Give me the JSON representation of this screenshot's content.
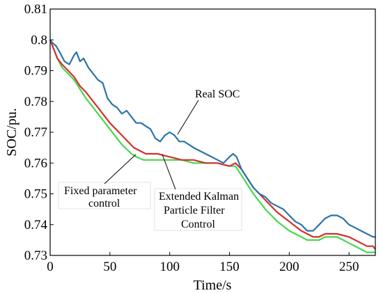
{
  "chart_data": {
    "type": "line",
    "title": "",
    "xlabel": "Time/s",
    "ylabel": "SOC/pu.",
    "xlim": [
      0,
      272
    ],
    "ylim": [
      0.73,
      0.81
    ],
    "xticks": [
      0,
      50,
      100,
      150,
      200,
      250
    ],
    "yticks": [
      0.73,
      0.74,
      0.75,
      0.76,
      0.77,
      0.78,
      0.79,
      0.8,
      0.81
    ],
    "grid": false,
    "legend": "none",
    "series": [
      {
        "label": "Real SOC",
        "color": "#2b73a8",
        "x": [
          0,
          2,
          5,
          8,
          12,
          16,
          20,
          22,
          25,
          28,
          32,
          36,
          40,
          44,
          48,
          52,
          56,
          60,
          64,
          68,
          72,
          76,
          80,
          84,
          88,
          92,
          96,
          100,
          104,
          108,
          112,
          116,
          120,
          125,
          130,
          135,
          140,
          145,
          150,
          153,
          156,
          160,
          165,
          170,
          175,
          180,
          185,
          190,
          195,
          200,
          205,
          210,
          215,
          220,
          225,
          230,
          235,
          240,
          245,
          250,
          255,
          260,
          265,
          270,
          272
        ],
        "y": [
          0.8,
          0.799,
          0.798,
          0.796,
          0.793,
          0.792,
          0.795,
          0.796,
          0.793,
          0.794,
          0.791,
          0.789,
          0.787,
          0.786,
          0.781,
          0.779,
          0.778,
          0.776,
          0.777,
          0.775,
          0.773,
          0.773,
          0.772,
          0.771,
          0.768,
          0.767,
          0.769,
          0.77,
          0.769,
          0.767,
          0.767,
          0.766,
          0.765,
          0.764,
          0.763,
          0.762,
          0.761,
          0.76,
          0.762,
          0.763,
          0.762,
          0.758,
          0.755,
          0.752,
          0.75,
          0.749,
          0.747,
          0.746,
          0.745,
          0.743,
          0.741,
          0.74,
          0.738,
          0.738,
          0.74,
          0.742,
          0.743,
          0.743,
          0.742,
          0.74,
          0.739,
          0.738,
          0.737,
          0.736,
          0.736
        ]
      },
      {
        "label": "Extended Kalman Particle Filter Control",
        "color": "#d32f2f",
        "x": [
          0,
          3,
          6,
          10,
          15,
          20,
          25,
          30,
          40,
          50,
          60,
          70,
          75,
          80,
          90,
          100,
          110,
          120,
          130,
          140,
          150,
          155,
          160,
          170,
          180,
          190,
          200,
          210,
          215,
          220,
          225,
          230,
          235,
          240,
          250,
          260,
          265,
          270,
          272
        ],
        "y": [
          0.8,
          0.797,
          0.794,
          0.792,
          0.79,
          0.788,
          0.785,
          0.783,
          0.778,
          0.773,
          0.769,
          0.765,
          0.764,
          0.763,
          0.763,
          0.762,
          0.761,
          0.761,
          0.76,
          0.76,
          0.759,
          0.76,
          0.758,
          0.752,
          0.748,
          0.744,
          0.741,
          0.738,
          0.737,
          0.736,
          0.736,
          0.737,
          0.737,
          0.737,
          0.736,
          0.734,
          0.733,
          0.733,
          0.732
        ]
      },
      {
        "label": "Fixed parameter control",
        "color": "#44d84a",
        "x": [
          0,
          3,
          6,
          10,
          15,
          20,
          25,
          30,
          40,
          50,
          60,
          68,
          72,
          78,
          90,
          100,
          110,
          120,
          130,
          140,
          150,
          155,
          160,
          170,
          180,
          190,
          200,
          210,
          215,
          220,
          225,
          230,
          235,
          240,
          250,
          260,
          265,
          270,
          272
        ],
        "y": [
          0.8,
          0.797,
          0.794,
          0.791,
          0.789,
          0.787,
          0.784,
          0.781,
          0.776,
          0.771,
          0.766,
          0.763,
          0.762,
          0.761,
          0.761,
          0.761,
          0.761,
          0.76,
          0.76,
          0.76,
          0.759,
          0.759,
          0.756,
          0.75,
          0.745,
          0.741,
          0.738,
          0.736,
          0.735,
          0.735,
          0.735,
          0.736,
          0.736,
          0.736,
          0.734,
          0.732,
          0.731,
          0.731,
          0.731
        ]
      }
    ],
    "annotations": [
      {
        "lines": [
          "Real SOC"
        ],
        "x": 105,
        "y": 0.7688,
        "box": false
      },
      {
        "lines": [
          "Fixed parameter",
          "control"
        ],
        "x": 72,
        "y": 0.7625,
        "box": true
      },
      {
        "lines": [
          "Extended Kalman",
          "Particle Filter",
          "Control"
        ],
        "x": 89,
        "y": 0.7635,
        "box": true
      }
    ]
  }
}
